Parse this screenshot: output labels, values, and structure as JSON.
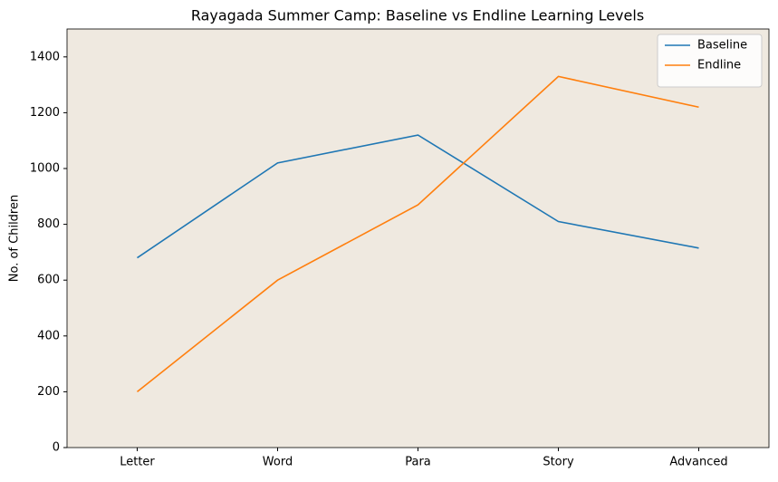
{
  "chart_data": {
    "type": "line",
    "title": "Rayagada Summer Camp: Baseline vs Endline Learning Levels",
    "ylabel": "No. of Children",
    "categories": [
      "Letter",
      "Word",
      "Para",
      "Story",
      "Advanced"
    ],
    "series": [
      {
        "name": "Baseline",
        "color": "#1f77b4",
        "values": [
          680,
          1020,
          1120,
          810,
          715
        ]
      },
      {
        "name": "Endline",
        "color": "#ff7f0e",
        "values": [
          200,
          600,
          870,
          1330,
          1220
        ]
      }
    ],
    "ylim": [
      0,
      1500
    ],
    "yticks": [
      0,
      200,
      400,
      600,
      800,
      1000,
      1200,
      1400
    ],
    "legend": "upper right"
  }
}
